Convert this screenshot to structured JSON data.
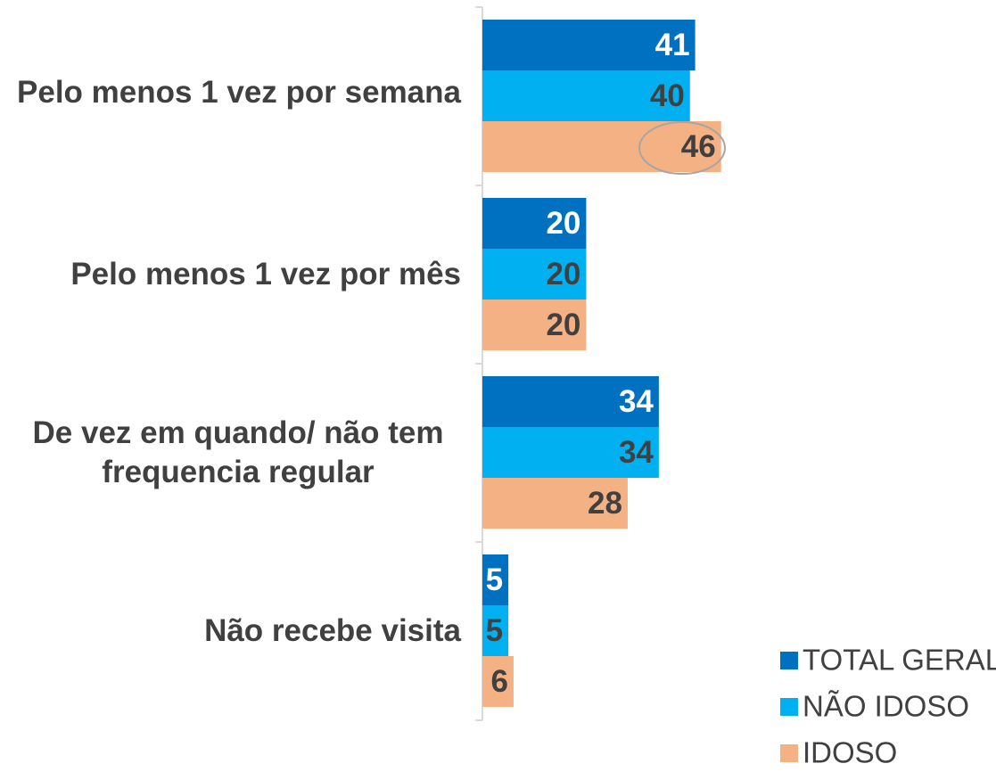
{
  "chart_data": {
    "type": "bar",
    "orientation": "horizontal",
    "categories": [
      "Pelo menos 1 vez por semana",
      "Pelo menos 1 vez por mês",
      "De vez em quando/ não tem frequencia regular",
      "Não recebe visita"
    ],
    "series": [
      {
        "name": "TOTAL GERAL",
        "color": "#0070c0",
        "label_color": "#ffffff",
        "values": [
          41,
          20,
          34,
          5
        ]
      },
      {
        "name": "NÃO IDOSO",
        "color": "#00b0f0",
        "label_color": "#404040",
        "values": [
          40,
          20,
          34,
          5
        ]
      },
      {
        "name": "IDOSO",
        "color": "#f4b183",
        "label_color": "#404040",
        "values": [
          46,
          20,
          28,
          6
        ]
      }
    ],
    "xlim": [
      0,
      100
    ],
    "legend": "bottom-right"
  }
}
